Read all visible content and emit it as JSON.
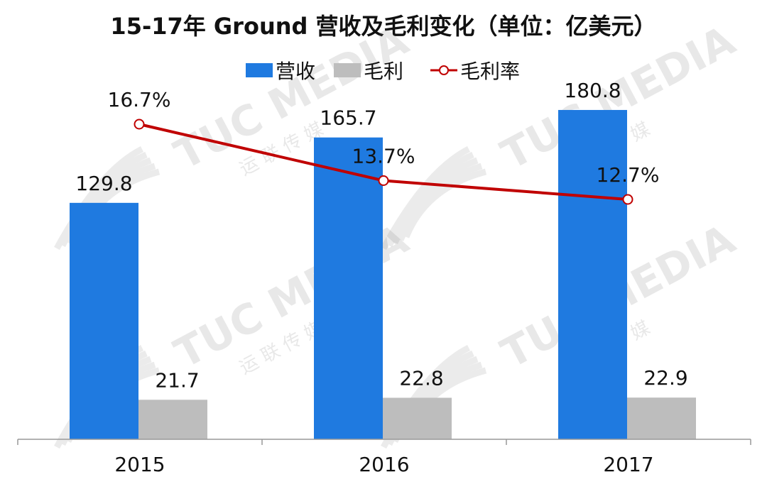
{
  "chart_data": {
    "type": "bar",
    "title": "15-17年 Ground 营收及毛利变化（单位：亿美元）",
    "categories": [
      "2015",
      "2016",
      "2017"
    ],
    "series": [
      {
        "name": "营收",
        "kind": "bar",
        "color": "#1f7ae0",
        "values": [
          129.8,
          165.7,
          180.8
        ],
        "labels": [
          "129.8",
          "165.7",
          "180.8"
        ]
      },
      {
        "name": "毛利",
        "kind": "bar",
        "color": "#bdbdbd",
        "values": [
          21.7,
          22.8,
          22.9
        ],
        "labels": [
          "21.7",
          "22.8",
          "22.9"
        ]
      },
      {
        "name": "毛利率",
        "kind": "line",
        "color": "#c00000",
        "values": [
          16.7,
          13.7,
          12.7
        ],
        "labels": [
          "16.7%",
          "13.7%",
          "12.7%"
        ]
      }
    ],
    "legend_position": "top",
    "grid": false
  },
  "watermark": {
    "brand": "TUC MEDIA",
    "sub": "运 联 传 媒"
  }
}
